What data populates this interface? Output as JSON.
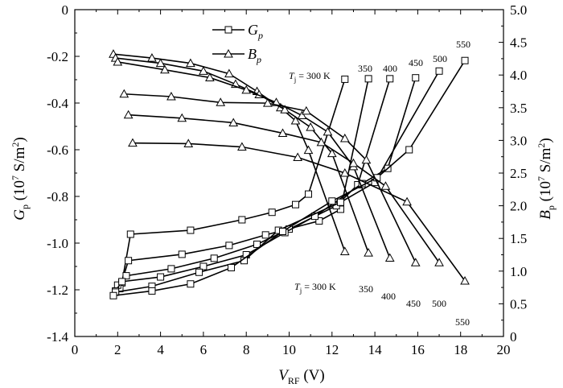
{
  "chart_data": {
    "type": "line",
    "title": "",
    "xlabel": "V",
    "xlabel_sub": "RF",
    "xlabel_unit": " (V)",
    "ylabel_left": "G",
    "ylabel_left_sub": "p",
    "ylabel_left_unit": " (10",
    "ylabel_left_exp": "7",
    "ylabel_left_unit2": " S/m",
    "ylabel_left_exp2": "2",
    "ylabel_left_close": ")",
    "ylabel_right": "B",
    "ylabel_right_sub": "p",
    "ylabel_right_unit": " (10",
    "ylabel_right_exp": "7",
    "ylabel_right_unit2": " S/m",
    "ylabel_right_exp2": "2",
    "ylabel_right_close": ")",
    "xlim": [
      0,
      20
    ],
    "ylim_left": [
      -1.4,
      0
    ],
    "ylim_right": [
      0,
      5
    ],
    "xticks": [
      "0",
      "2",
      "4",
      "6",
      "8",
      "10",
      "12",
      "14",
      "16",
      "18",
      "20"
    ],
    "yticks_left": [
      "0",
      "-0.2",
      "-0.4",
      "-0.6",
      "-0.8",
      "-1.0",
      "-1.2",
      "-1.4"
    ],
    "yticks_right": [
      "5.0",
      "4.5",
      "4.0",
      "3.5",
      "3.0",
      "2.5",
      "2.0",
      "1.5",
      "1.0",
      "0.5",
      "0"
    ],
    "legend": [
      {
        "symbol": "square",
        "text": "G",
        "sub": "p"
      },
      {
        "symbol": "triangle",
        "text": "B",
        "sub": "p"
      }
    ],
    "gp_series": [
      {
        "temperature": "300 K",
        "points": [
          [
            2.2,
            -1.17
          ],
          [
            2.6,
            -0.962
          ],
          [
            5.4,
            -0.945
          ],
          [
            7.8,
            -0.9
          ],
          [
            9.2,
            -0.868
          ],
          [
            10.3,
            -0.835
          ],
          [
            10.9,
            -0.79
          ],
          [
            12.6,
            -0.298
          ]
        ]
      },
      {
        "temperature": "350",
        "points": [
          [
            2.1,
            -1.195
          ],
          [
            2.5,
            -1.075
          ],
          [
            5.0,
            -1.048
          ],
          [
            7.2,
            -1.01
          ],
          [
            8.9,
            -0.965
          ],
          [
            11.4,
            -0.905
          ],
          [
            12.4,
            -0.855
          ],
          [
            13.7,
            -0.296
          ]
        ]
      },
      {
        "temperature": "400",
        "points": [
          [
            2.0,
            -1.18
          ],
          [
            2.4,
            -1.14
          ],
          [
            4.5,
            -1.11
          ],
          [
            6.5,
            -1.065
          ],
          [
            8.5,
            -1.005
          ],
          [
            10.0,
            -0.94
          ],
          [
            12.2,
            -0.84
          ],
          [
            13.2,
            -0.75
          ],
          [
            14.7,
            -0.296
          ]
        ]
      },
      {
        "temperature": "450",
        "points": [
          [
            1.9,
            -1.205
          ],
          [
            2.2,
            -1.165
          ],
          [
            4.0,
            -1.145
          ],
          [
            6.0,
            -1.1
          ],
          [
            8.0,
            -1.05
          ],
          [
            9.8,
            -0.955
          ],
          [
            11.2,
            -0.885
          ],
          [
            13.4,
            -0.745
          ],
          [
            14.6,
            -0.68
          ],
          [
            15.9,
            -0.292
          ]
        ]
      },
      {
        "temperature": "500",
        "points": [
          [
            1.9,
            -1.21
          ],
          [
            3.6,
            -1.185
          ],
          [
            5.8,
            -1.125
          ],
          [
            7.9,
            -1.075
          ],
          [
            9.5,
            -0.945
          ],
          [
            12.4,
            -0.825
          ],
          [
            14.0,
            -0.74
          ],
          [
            17.0,
            -0.263
          ]
        ]
      },
      {
        "temperature": "550",
        "points": [
          [
            1.8,
            -1.225
          ],
          [
            3.6,
            -1.205
          ],
          [
            5.4,
            -1.175
          ],
          [
            7.3,
            -1.105
          ],
          [
            9.7,
            -0.95
          ],
          [
            12.0,
            -0.82
          ],
          [
            14.1,
            -0.72
          ],
          [
            15.6,
            -0.6
          ],
          [
            18.2,
            -0.218
          ]
        ]
      }
    ],
    "bp_series": [
      {
        "temperature": "300 K",
        "points": [
          [
            1.8,
            4.32
          ],
          [
            3.6,
            4.26
          ],
          [
            5.4,
            4.18
          ],
          [
            7.2,
            4.02
          ],
          [
            8.5,
            3.75
          ],
          [
            9.6,
            3.5
          ],
          [
            10.3,
            3.3
          ],
          [
            10.9,
            2.85
          ],
          [
            12.6,
            1.3
          ]
        ]
      },
      {
        "temperature": "350",
        "points": [
          [
            1.9,
            4.26
          ],
          [
            4.0,
            4.18
          ],
          [
            6.0,
            4.06
          ],
          [
            7.5,
            3.86
          ],
          [
            8.6,
            3.7
          ],
          [
            9.8,
            3.47
          ],
          [
            11.0,
            3.2
          ],
          [
            12.0,
            2.8
          ],
          [
            13.7,
            1.28
          ]
        ]
      },
      {
        "temperature": "400",
        "points": [
          [
            2.0,
            4.2
          ],
          [
            4.2,
            4.08
          ],
          [
            6.3,
            3.96
          ],
          [
            8.0,
            3.77
          ],
          [
            9.4,
            3.58
          ],
          [
            10.6,
            3.38
          ],
          [
            11.8,
            3.13
          ],
          [
            13.0,
            2.6
          ],
          [
            14.7,
            1.2
          ]
        ]
      },
      {
        "temperature": "450",
        "points": [
          [
            2.3,
            3.71
          ],
          [
            4.5,
            3.67
          ],
          [
            6.8,
            3.58
          ],
          [
            9.0,
            3.57
          ],
          [
            10.8,
            3.45
          ],
          [
            12.6,
            3.03
          ],
          [
            13.6,
            2.7
          ],
          [
            15.9,
            1.13
          ]
        ]
      },
      {
        "temperature": "500",
        "points": [
          [
            2.5,
            3.39
          ],
          [
            5.0,
            3.34
          ],
          [
            7.4,
            3.27
          ],
          [
            9.7,
            3.11
          ],
          [
            11.5,
            2.97
          ],
          [
            13.0,
            2.65
          ],
          [
            14.5,
            2.3
          ],
          [
            17.0,
            1.13
          ]
        ]
      },
      {
        "temperature": "550",
        "points": [
          [
            2.7,
            2.96
          ],
          [
            5.3,
            2.95
          ],
          [
            7.8,
            2.9
          ],
          [
            10.4,
            2.74
          ],
          [
            12.6,
            2.5
          ],
          [
            15.5,
            2.06
          ],
          [
            18.2,
            0.85
          ]
        ]
      }
    ],
    "annotations_top": {
      "prefix_t": "T",
      "prefix_sub": "j",
      "first": " = 300 K",
      "labels": [
        "350",
        "400",
        "450",
        "500",
        "550"
      ]
    },
    "annotations_bottom": {
      "prefix_t": "T",
      "prefix_sub": "j",
      "first": " = 300 K",
      "labels": [
        "350",
        "400",
        "450",
        "500",
        "550"
      ]
    }
  }
}
